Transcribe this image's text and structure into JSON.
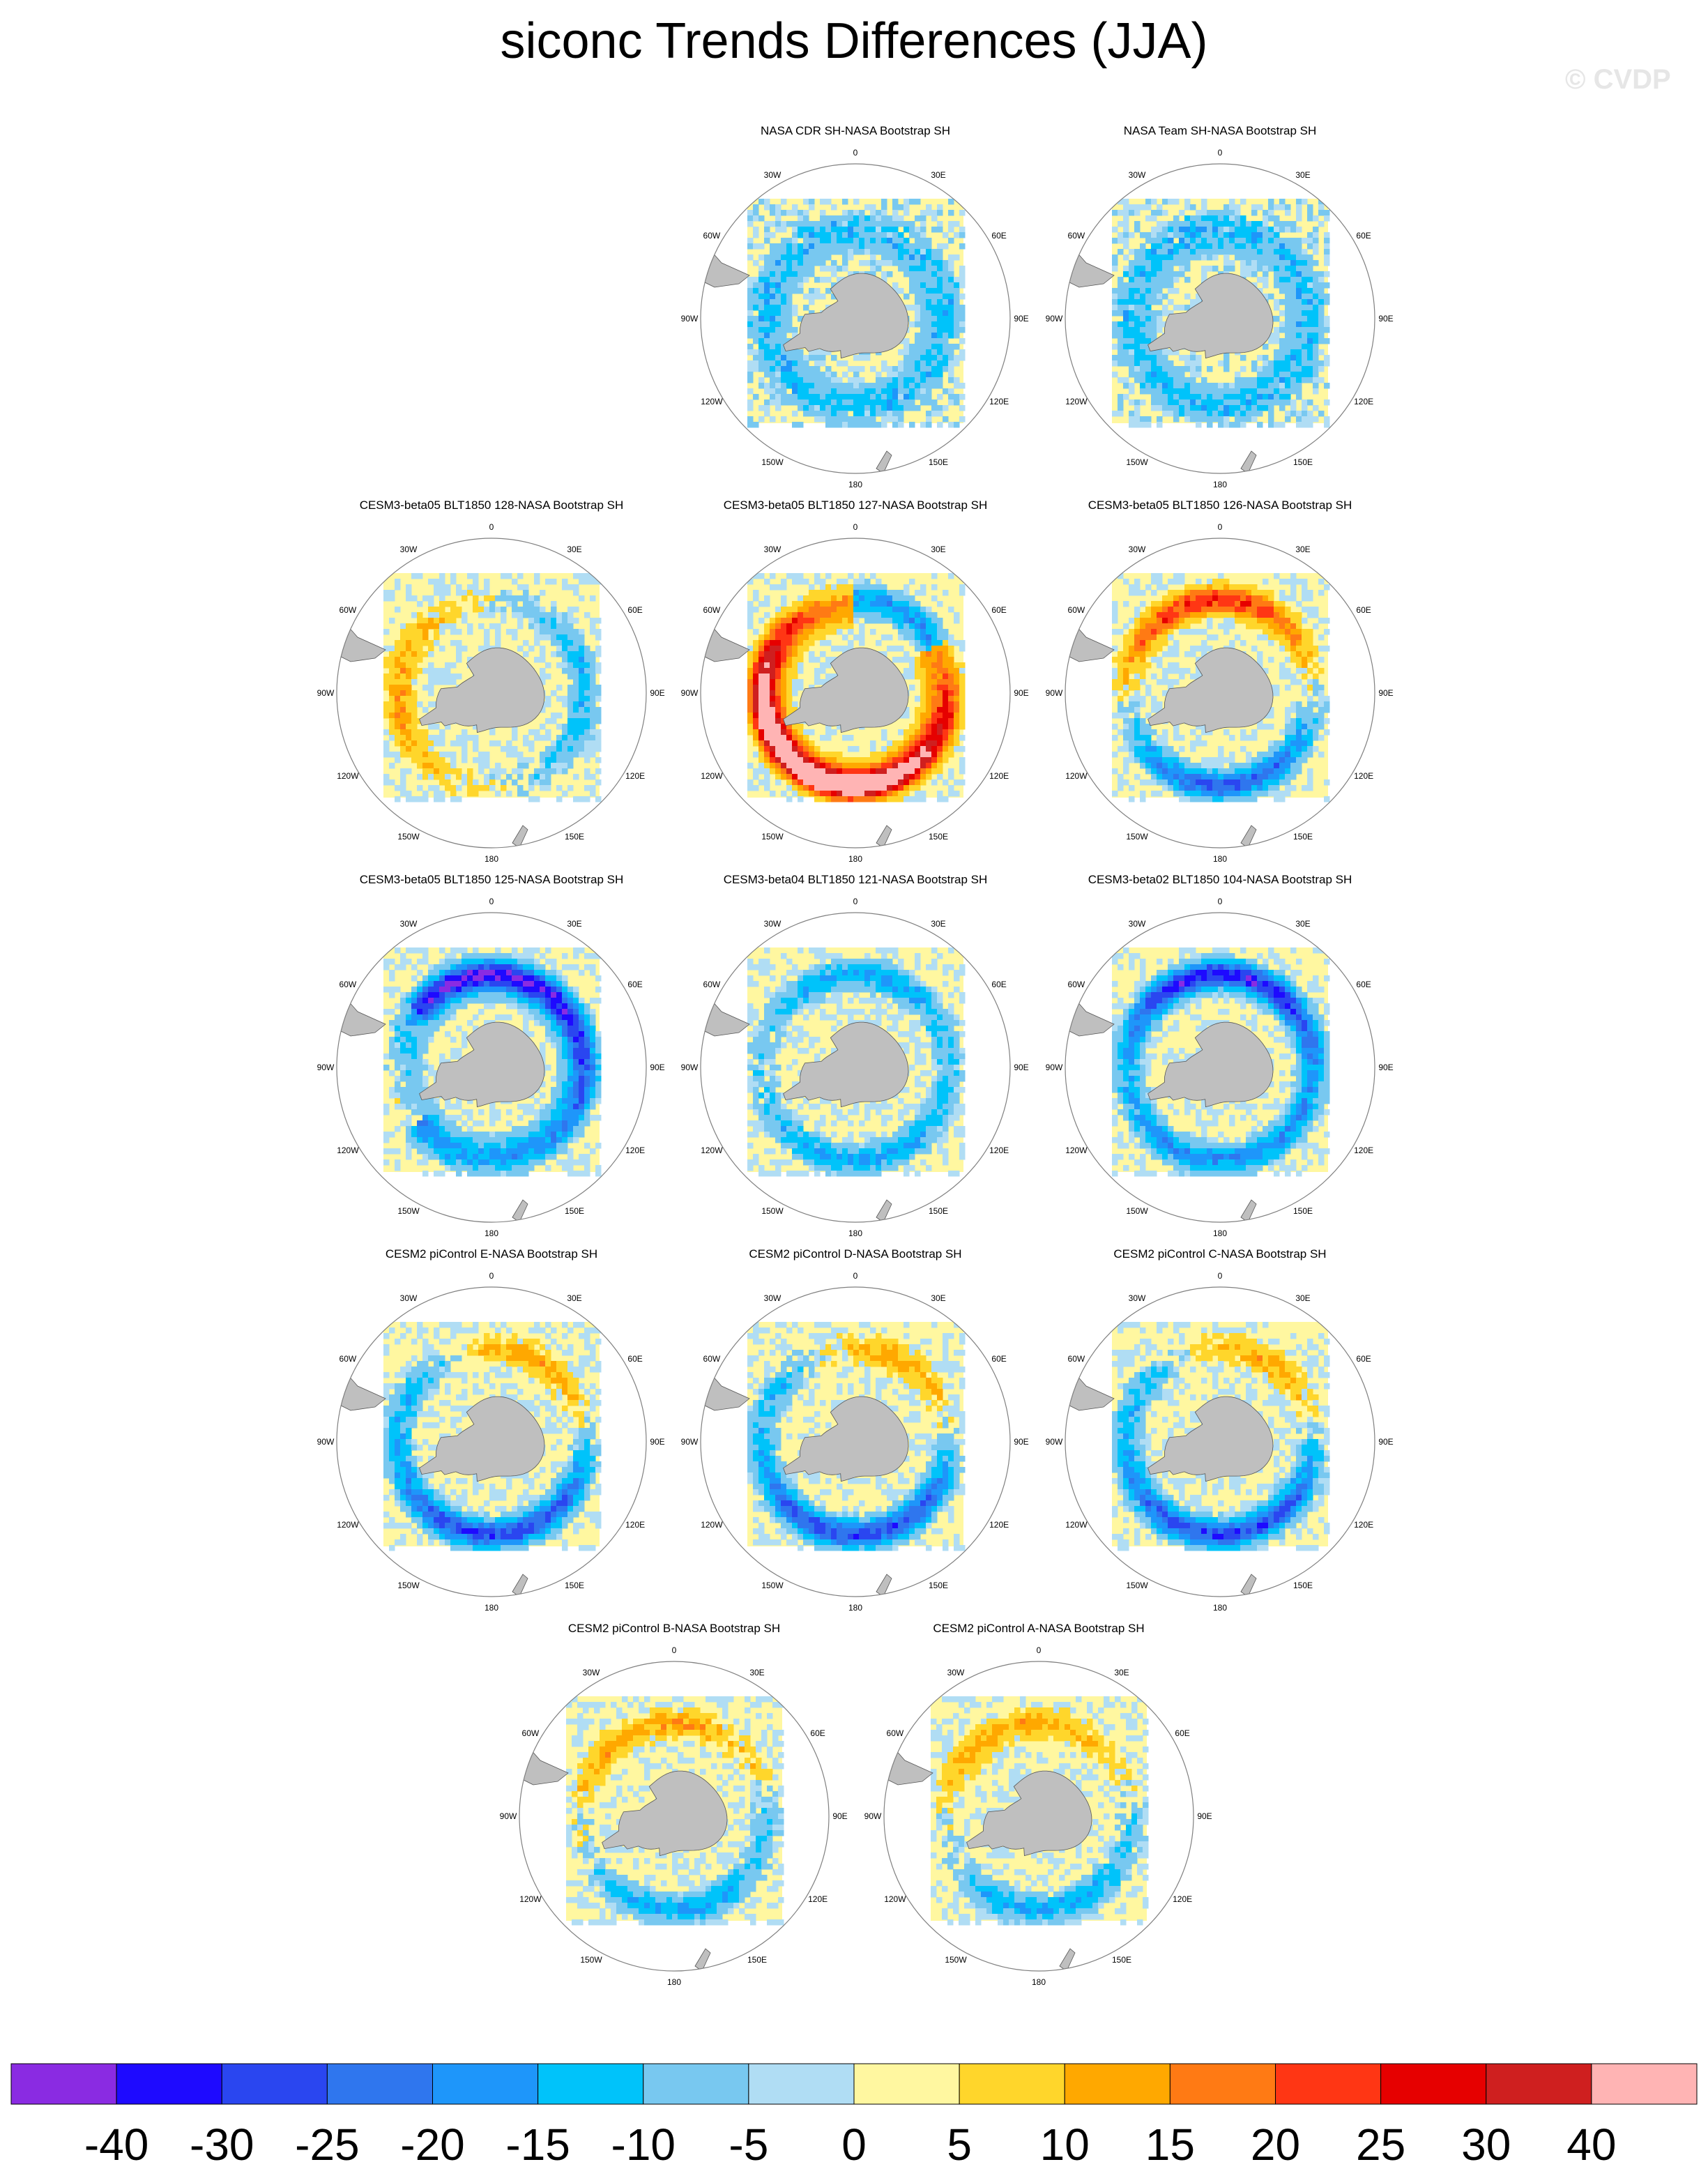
{
  "title": "siconc Trends Differences (JJA)",
  "watermark": "© CVDP",
  "lon_labels": [
    "0",
    "30E",
    "60E",
    "90E",
    "120E",
    "150E",
    "180",
    "150W",
    "120W",
    "90W",
    "60W",
    "30W"
  ],
  "colors": {
    "land": "#bfbfbf",
    "grid_circle": "#808080",
    "zero_fill": "#fff7a0",
    "light_blue": "#b0ddf4"
  },
  "chart_data": {
    "type": "heatmap",
    "projection": "south-polar-stereographic",
    "panels": [
      {
        "title": "NASA CDR SH-NASA Bootstrap SH",
        "pattern": "obs1"
      },
      {
        "title": "NASA Team SH-NASA Bootstrap SH",
        "pattern": "obs2"
      },
      {
        "title": "CESM3-beta05 BLT1850 128-NASA Bootstrap SH",
        "pattern": "mixA"
      },
      {
        "title": "CESM3-beta05 BLT1850 127-NASA Bootstrap SH",
        "pattern": "hot"
      },
      {
        "title": "CESM3-beta05 BLT1850 126-NASA Bootstrap SH",
        "pattern": "mixB"
      },
      {
        "title": "CESM3-beta05 BLT1850 125-NASA Bootstrap SH",
        "pattern": "cold"
      },
      {
        "title": "CESM3-beta04 BLT1850 121-NASA Bootstrap SH",
        "pattern": "weak"
      },
      {
        "title": "CESM3-beta02 BLT1850 104-NASA Bootstrap SH",
        "pattern": "cold2"
      },
      {
        "title": "CESM2 piControl E-NASA Bootstrap SH",
        "pattern": "pi"
      },
      {
        "title": "CESM2 piControl D-NASA Bootstrap SH",
        "pattern": "pi"
      },
      {
        "title": "CESM2 piControl C-NASA Bootstrap SH",
        "pattern": "pi"
      },
      {
        "title": "CESM2 piControl B-NASA Bootstrap SH",
        "pattern": "pi2"
      },
      {
        "title": "CESM2 piControl A-NASA Bootstrap SH",
        "pattern": "pi2"
      }
    ],
    "colorbar": {
      "levels": [
        "-40",
        "-30",
        "-25",
        "-20",
        "-15",
        "-10",
        "-5",
        "0",
        "5",
        "10",
        "15",
        "20",
        "25",
        "30",
        "40"
      ],
      "colors": [
        "#8a2be2",
        "#1e0aff",
        "#2a46f0",
        "#2f76ee",
        "#1e96fa",
        "#00c3fa",
        "#78c8f0",
        "#b0ddf4",
        "#fff7a0",
        "#ffd62b",
        "#ffa800",
        "#ff7a14",
        "#ff3614",
        "#e60000",
        "#cf1f1f",
        "#ffb4b4"
      ]
    }
  }
}
